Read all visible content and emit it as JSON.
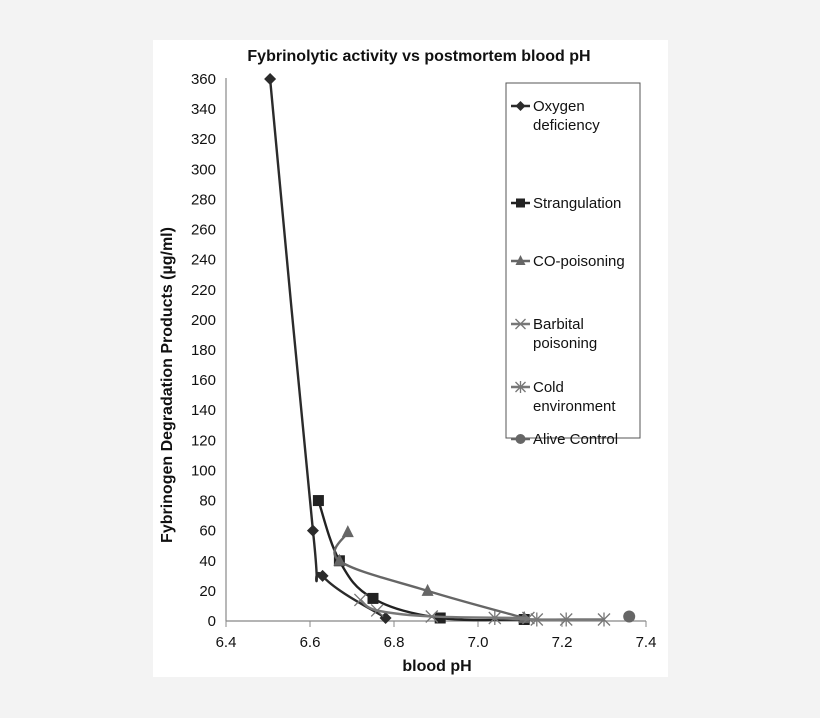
{
  "chart_data": {
    "type": "scatter",
    "title": "Fybrinolytic activity vs postmortem blood pH",
    "xlabel": "blood pH",
    "ylabel": "Fybrinogen Degradation Products (µg/ml)",
    "xlim": [
      6.4,
      7.4
    ],
    "ylim": [
      0,
      360
    ],
    "xticks": [
      "6.4",
      "6.6",
      "6.8",
      "7.0",
      "7.2",
      "7.4"
    ],
    "yticks": [
      "0",
      "20",
      "40",
      "60",
      "80",
      "100",
      "120",
      "140",
      "160",
      "180",
      "200",
      "220",
      "240",
      "260",
      "280",
      "300",
      "320",
      "340",
      "360"
    ],
    "grid": false,
    "legend_position": "upper right (inside)",
    "lines": "smoothed lines with markers",
    "series": [
      {
        "name": "Oxygen deficiency",
        "marker": "diamond",
        "color": "#2b2b2b",
        "x": [
          6.505,
          6.607,
          6.63,
          6.78
        ],
        "y": [
          360,
          60,
          30,
          2
        ]
      },
      {
        "name": "Strangulation",
        "marker": "square",
        "color": "#222222",
        "x": [
          6.62,
          6.67,
          6.75,
          6.91,
          7.11
        ],
        "y": [
          80,
          40,
          15,
          2,
          1
        ]
      },
      {
        "name": "CO-poisoning",
        "marker": "triangle",
        "color": "#666666",
        "x": [
          6.69,
          6.67,
          6.88,
          7.11
        ],
        "y": [
          59,
          40,
          20,
          2
        ]
      },
      {
        "name": "Barbital poisoning",
        "marker": "x",
        "color": "#777777",
        "x": [
          6.72,
          6.76,
          6.89,
          7.12
        ],
        "y": [
          14,
          7,
          3,
          2
        ]
      },
      {
        "name": "Cold environment",
        "marker": "asterisk",
        "color": "#777777",
        "x": [
          7.04,
          7.14,
          7.21,
          7.3
        ],
        "y": [
          2,
          1,
          1,
          1
        ]
      },
      {
        "name": "Alive Control",
        "marker": "circle",
        "color": "#666666",
        "x": [
          7.36
        ],
        "y": [
          3
        ]
      }
    ]
  },
  "legend": {
    "items": [
      {
        "lines": [
          "Oxygen",
          "deficiency"
        ]
      },
      {
        "lines": [
          "Strangulation"
        ]
      },
      {
        "lines": [
          "CO-poisoning"
        ]
      },
      {
        "lines": [
          "Barbital",
          "poisoning"
        ]
      },
      {
        "lines": [
          "Cold",
          "environment"
        ]
      },
      {
        "lines": [
          "Alive Control"
        ]
      }
    ]
  }
}
